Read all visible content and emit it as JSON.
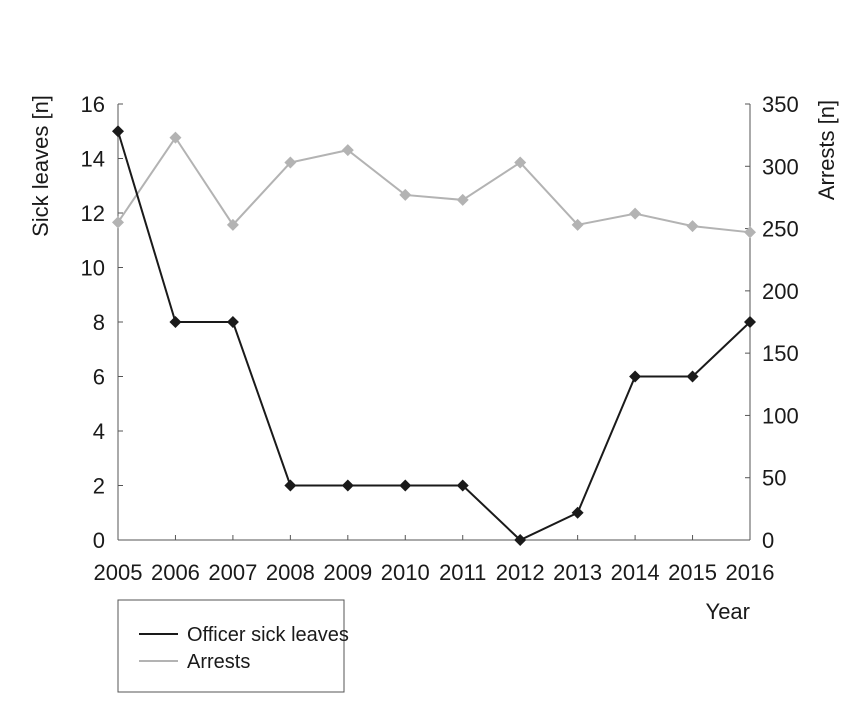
{
  "chart_data": {
    "type": "line",
    "title": "",
    "xlabel": "Year",
    "ylabel_left": "Sick leaves [n]",
    "ylabel_right": "Arrests [n]",
    "x": [
      "2005",
      "2006",
      "2007",
      "2008",
      "2009",
      "2010",
      "2011",
      "2012",
      "2013",
      "2014",
      "2015",
      "2016"
    ],
    "ylim_left": [
      0,
      16
    ],
    "ylim_right": [
      0,
      350
    ],
    "yticks_left": [
      "0",
      "2",
      "4",
      "6",
      "8",
      "10",
      "12",
      "14",
      "16"
    ],
    "yticks_right": [
      "0",
      "50",
      "100",
      "150",
      "200",
      "250",
      "300",
      "350"
    ],
    "grid": false,
    "legend_position": "bottom-left",
    "series": [
      {
        "name": "Officer sick leaves",
        "axis": "left",
        "color": "#1a1a1a",
        "marker": "diamond",
        "values": [
          15,
          8,
          8,
          2,
          2,
          2,
          2,
          0,
          1,
          6,
          6,
          8
        ]
      },
      {
        "name": "Arrests",
        "axis": "right",
        "color": "#b3b3b3",
        "marker": "diamond",
        "values": [
          255,
          323,
          253,
          303,
          313,
          277,
          273,
          303,
          253,
          262,
          252,
          247
        ]
      }
    ]
  }
}
